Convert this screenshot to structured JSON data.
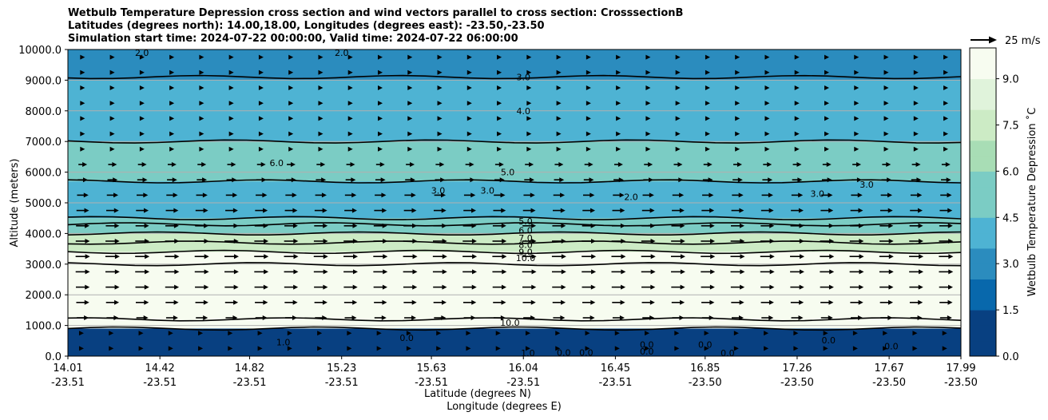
{
  "title": {
    "line1": "Wetbulb Temperature Depression cross section and wind vectors parallel to cross section: CrosssectionB",
    "line2": "Latitudes (degrees north): 14.00,18.00, Longitudes (degrees east): -23.50,-23.50",
    "line3": "Simulation start time: 2024-07-22 00:00:00, Valid time: 2024-07-22 06:00:00"
  },
  "chart_data": {
    "type": "heatmap",
    "xlabel": "Latitude (degrees N)",
    "xlabel2": "Longitude (degrees E)",
    "ylabel": "Altitude (meters)",
    "xlim": [
      14.01,
      17.99
    ],
    "ylim": [
      0,
      10000
    ],
    "x_ticks": [
      {
        "lat": "14.01",
        "lon": "-23.51",
        "value": 14.01
      },
      {
        "lat": "14.42",
        "lon": "-23.51",
        "value": 14.42
      },
      {
        "lat": "14.82",
        "lon": "-23.51",
        "value": 14.82
      },
      {
        "lat": "15.23",
        "lon": "-23.51",
        "value": 15.23
      },
      {
        "lat": "15.63",
        "lon": "-23.51",
        "value": 15.63
      },
      {
        "lat": "16.04",
        "lon": "-23.51",
        "value": 16.04
      },
      {
        "lat": "16.45",
        "lon": "-23.51",
        "value": 16.45
      },
      {
        "lat": "16.85",
        "lon": "-23.50",
        "value": 16.85
      },
      {
        "lat": "17.26",
        "lon": "-23.50",
        "value": 17.26
      },
      {
        "lat": "17.67",
        "lon": "-23.50",
        "value": 17.67
      },
      {
        "lat": "17.99",
        "lon": "-23.50",
        "value": 17.99
      }
    ],
    "y_ticks": [
      {
        "label": "0.0",
        "value": 0
      },
      {
        "label": "1000.0",
        "value": 1000
      },
      {
        "label": "2000.0",
        "value": 2000
      },
      {
        "label": "3000.0",
        "value": 3000
      },
      {
        "label": "4000.0",
        "value": 4000
      },
      {
        "label": "5000.0",
        "value": 5000
      },
      {
        "label": "6000.0",
        "value": 6000
      },
      {
        "label": "7000.0",
        "value": 7000
      },
      {
        "label": "8000.0",
        "value": 8000
      },
      {
        "label": "9000.0",
        "value": 9000
      },
      {
        "label": "10000.0",
        "value": 10000
      }
    ],
    "grid": "horizontal",
    "colorbar": {
      "label": "Wetbulb Temperature Depression ˚C",
      "range": [
        0,
        10
      ],
      "ticks": [
        "0.0",
        "1.5",
        "3.0",
        "4.5",
        "6.0",
        "7.5",
        "9.0"
      ],
      "tick_values": [
        0,
        1.5,
        3.0,
        4.5,
        6.0,
        7.5,
        9.0
      ],
      "colors": [
        "#084081",
        "#0868ac",
        "#2b8cbe",
        "#4eb3d3",
        "#7bccc4",
        "#a8ddb5",
        "#ccebc5",
        "#e0f3db",
        "#f7fcf0"
      ]
    },
    "wind_key": {
      "label": "25 m/s",
      "speed": 25
    },
    "layers": [
      {
        "z_bottom": 0,
        "z_top": 900,
        "value": 0.5
      },
      {
        "z_bottom": 900,
        "z_top": 1200,
        "value": 10.0
      },
      {
        "z_bottom": 1200,
        "z_top": 3000,
        "value": 10.0
      },
      {
        "z_bottom": 3000,
        "z_top": 3400,
        "value": 9.5
      },
      {
        "z_bottom": 3400,
        "z_top": 4000,
        "value": 7.0
      },
      {
        "z_bottom": 4000,
        "z_top": 4500,
        "value": 5.0
      },
      {
        "z_bottom": 4500,
        "z_top": 5700,
        "value": 3.5
      },
      {
        "z_bottom": 5700,
        "z_top": 7000,
        "value": 5.5
      },
      {
        "z_bottom": 7000,
        "z_top": 9000,
        "value": 4.0
      },
      {
        "z_bottom": 9000,
        "z_top": 10000,
        "value": 2.5
      }
    ],
    "contour_labels": [
      {
        "text": "2.0",
        "lat": 14.34,
        "z": 9900
      },
      {
        "text": "2.0",
        "lat": 15.23,
        "z": 9900
      },
      {
        "text": "3.0",
        "lat": 16.04,
        "z": 9100
      },
      {
        "text": "4.0",
        "lat": 16.04,
        "z": 8000
      },
      {
        "text": "5.0",
        "lat": 15.97,
        "z": 6000
      },
      {
        "text": "6.0",
        "lat": 14.94,
        "z": 6300
      },
      {
        "text": "3.0",
        "lat": 15.66,
        "z": 5400
      },
      {
        "text": "3.0",
        "lat": 15.88,
        "z": 5400
      },
      {
        "text": "2.0",
        "lat": 16.52,
        "z": 5200
      },
      {
        "text": "3.0",
        "lat": 17.35,
        "z": 5300
      },
      {
        "text": "3.0",
        "lat": 17.57,
        "z": 5600
      },
      {
        "text": "5.0",
        "lat": 16.05,
        "z": 4400
      },
      {
        "text": "6.0",
        "lat": 16.05,
        "z": 4100
      },
      {
        "text": "7.0",
        "lat": 16.05,
        "z": 3850
      },
      {
        "text": "8.0",
        "lat": 16.05,
        "z": 3630
      },
      {
        "text": "9.0",
        "lat": 16.05,
        "z": 3400
      },
      {
        "text": "10.0",
        "lat": 16.05,
        "z": 3200
      },
      {
        "text": "10.0",
        "lat": 15.98,
        "z": 1100
      },
      {
        "text": "1.0",
        "lat": 14.97,
        "z": 450
      },
      {
        "text": "0.0",
        "lat": 15.52,
        "z": 600
      },
      {
        "text": "1.0",
        "lat": 16.06,
        "z": 100
      },
      {
        "text": "0.0",
        "lat": 16.22,
        "z": 120
      },
      {
        "text": "0.0",
        "lat": 16.32,
        "z": 120
      },
      {
        "text": "0.0",
        "lat": 16.59,
        "z": 380
      },
      {
        "text": "0.0",
        "lat": 16.59,
        "z": 150
      },
      {
        "text": "0.0",
        "lat": 16.85,
        "z": 380
      },
      {
        "text": "0.0",
        "lat": 16.95,
        "z": 100
      },
      {
        "text": "0.0",
        "lat": 17.4,
        "z": 520
      },
      {
        "text": "0.0",
        "lat": 17.68,
        "z": 320
      }
    ]
  }
}
